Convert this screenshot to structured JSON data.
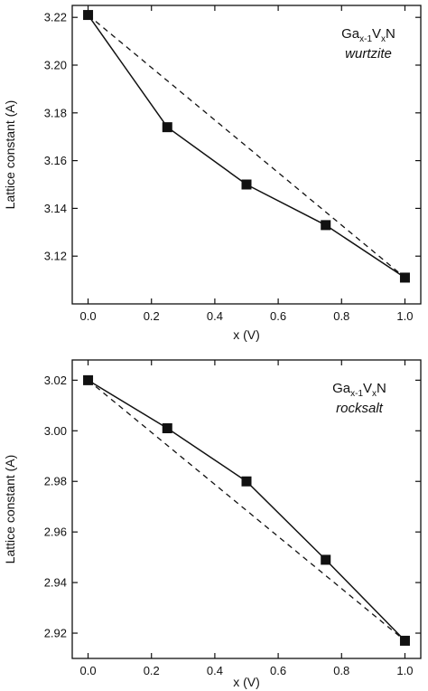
{
  "chart_data": [
    {
      "type": "line",
      "title": "",
      "xlabel": "x (V)",
      "ylabel": "Lattice constant (A)",
      "xlim": [
        -0.05,
        1.05
      ],
      "ylim": [
        3.1,
        3.225
      ],
      "xticks": [
        0.0,
        0.2,
        0.4,
        0.6,
        0.8,
        1.0
      ],
      "yticks": [
        3.12,
        3.14,
        3.16,
        3.18,
        3.2,
        3.22
      ],
      "xtick_labels": [
        "0.0",
        "0.2",
        "0.4",
        "0.6",
        "0.8",
        "1.0"
      ],
      "ytick_labels": [
        "3.12",
        "3.14",
        "3.16",
        "3.18",
        "3.20",
        "3.22"
      ],
      "annotation": {
        "formula": {
          "base1": "Ga",
          "sub1": "x-1",
          "base2": "V",
          "sub2": "x",
          "base3": "N"
        },
        "phase": "wurtzite"
      },
      "series": [
        {
          "style": "solid-square-markers",
          "x": [
            0.0,
            0.25,
            0.5,
            0.75,
            1.0
          ],
          "y": [
            3.221,
            3.174,
            3.15,
            3.133,
            3.111
          ]
        },
        {
          "style": "dashed",
          "x": [
            0.0,
            1.0
          ],
          "y": [
            3.221,
            3.111
          ]
        }
      ],
      "grid": false
    },
    {
      "type": "line",
      "title": "",
      "xlabel": "x (V)",
      "ylabel": "Lattice constant (A)",
      "xlim": [
        -0.05,
        1.05
      ],
      "ylim": [
        2.91,
        3.028
      ],
      "xticks": [
        0.0,
        0.2,
        0.4,
        0.6,
        0.8,
        1.0
      ],
      "yticks": [
        2.92,
        2.94,
        2.96,
        2.98,
        3.0,
        3.02
      ],
      "xtick_labels": [
        "0.0",
        "0.2",
        "0.4",
        "0.6",
        "0.8",
        "1.0"
      ],
      "ytick_labels": [
        "2.92",
        "2.94",
        "2.96",
        "2.98",
        "3.00",
        "3.02"
      ],
      "annotation": {
        "formula": {
          "base1": "Ga",
          "sub1": "x-1",
          "base2": "V",
          "sub2": "x",
          "base3": "N"
        },
        "phase": "rocksalt"
      },
      "series": [
        {
          "style": "solid-square-markers",
          "x": [
            0.0,
            0.25,
            0.5,
            0.75,
            1.0
          ],
          "y": [
            3.02,
            3.001,
            2.98,
            2.949,
            2.917
          ]
        },
        {
          "style": "dashed",
          "x": [
            0.0,
            1.0
          ],
          "y": [
            3.02,
            2.917
          ]
        }
      ],
      "grid": false
    }
  ]
}
